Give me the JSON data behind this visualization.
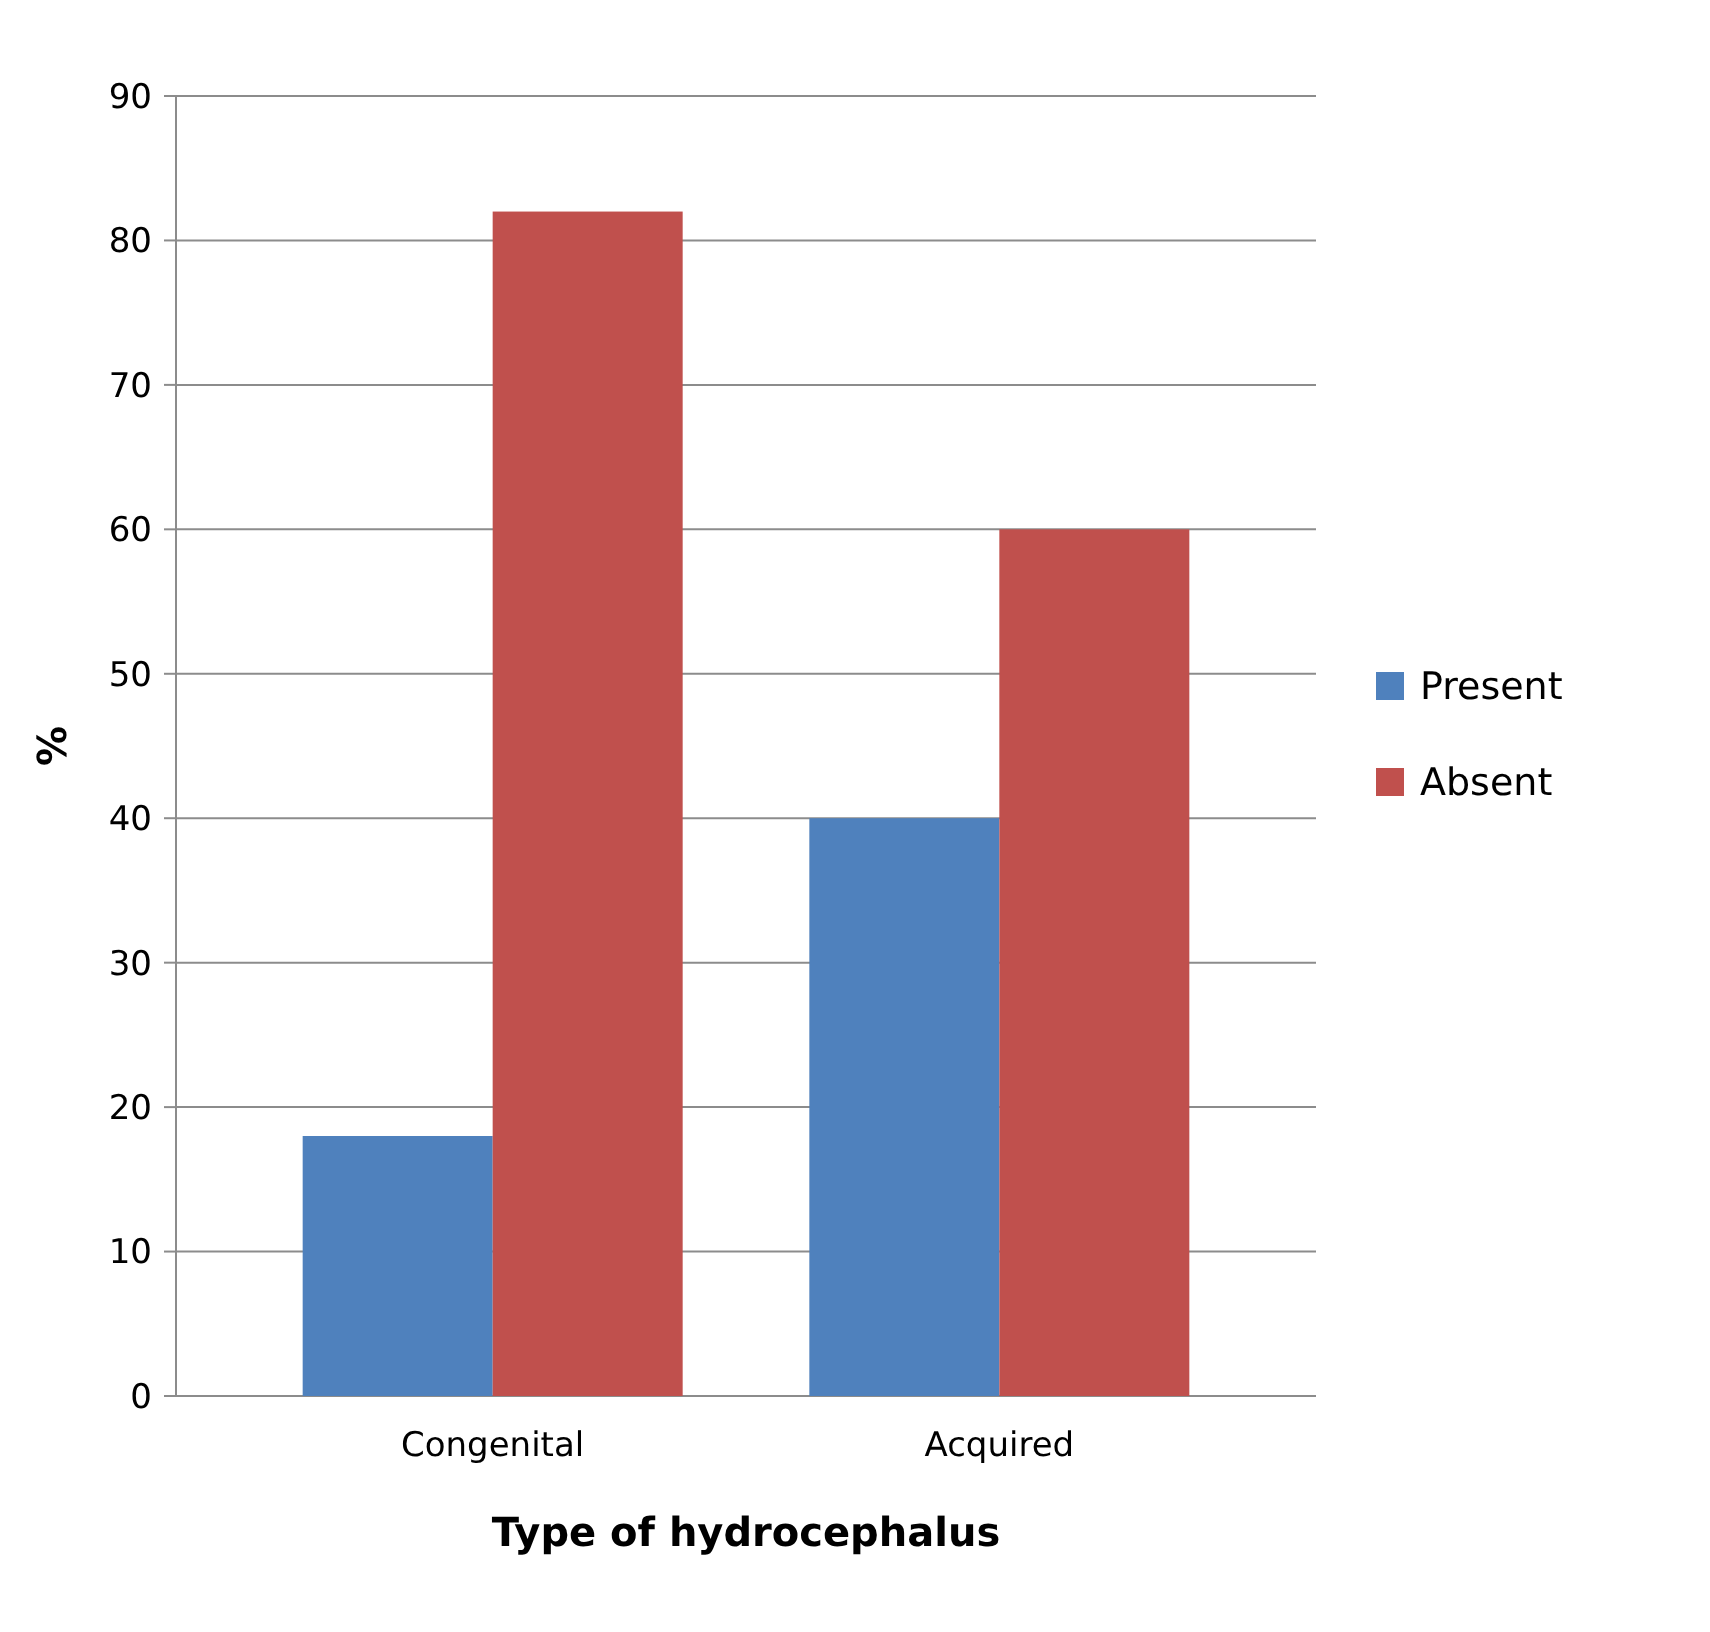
{
  "chart_data": {
    "type": "bar",
    "xlabel": "Type of hydrocephalus",
    "ylabel": "%",
    "categories": [
      "Congenital",
      "Acquired"
    ],
    "series": [
      {
        "name": "Present",
        "color": "#4f81bd",
        "values": [
          18,
          40
        ]
      },
      {
        "name": "Absent",
        "color": "#c0504d",
        "values": [
          82,
          60
        ]
      }
    ],
    "ylim": [
      0,
      90
    ],
    "yticks": [
      0,
      10,
      20,
      30,
      40,
      50,
      60,
      70,
      80,
      90
    ],
    "grid": "y",
    "legend": "right"
  }
}
